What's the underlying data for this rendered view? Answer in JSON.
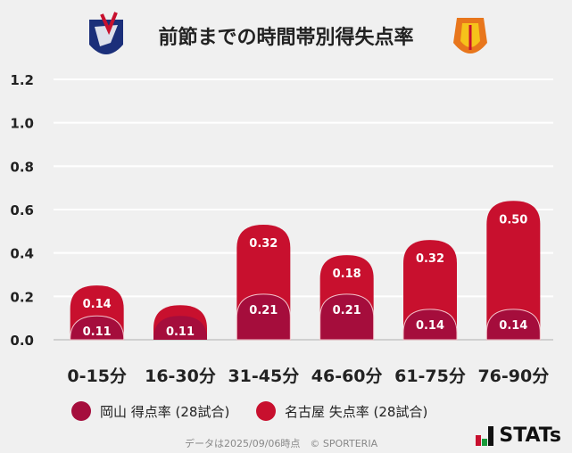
{
  "title": "前節までの時間帯別得失点率",
  "chart_data": {
    "type": "bar",
    "stacked": true,
    "categories": [
      "0-15分",
      "16-30分",
      "31-45分",
      "46-60分",
      "61-75分",
      "76-90分"
    ],
    "series": [
      {
        "name": "岡山 得点率 (28試合)",
        "color": "#a50d3c",
        "values": [
          0.11,
          0.11,
          0.21,
          0.21,
          0.14,
          0.14
        ]
      },
      {
        "name": "名古屋 失点率 (28試合)",
        "color": "#c8102e",
        "values": [
          0.14,
          null,
          0.32,
          0.18,
          0.32,
          0.5
        ]
      }
    ],
    "yticks": [
      "0.0",
      "0.2",
      "0.4",
      "0.6",
      "0.8",
      "1.0",
      "1.2"
    ],
    "ylim": [
      0,
      1.2
    ],
    "grid": true,
    "legend": "bottom-left"
  },
  "footer": "データは2025/09/06時点　© SPORTERIA",
  "brand": "STATs",
  "logos": {
    "left": "fagiano-okayama-crest",
    "right": "nagoya-grampus-crest"
  }
}
